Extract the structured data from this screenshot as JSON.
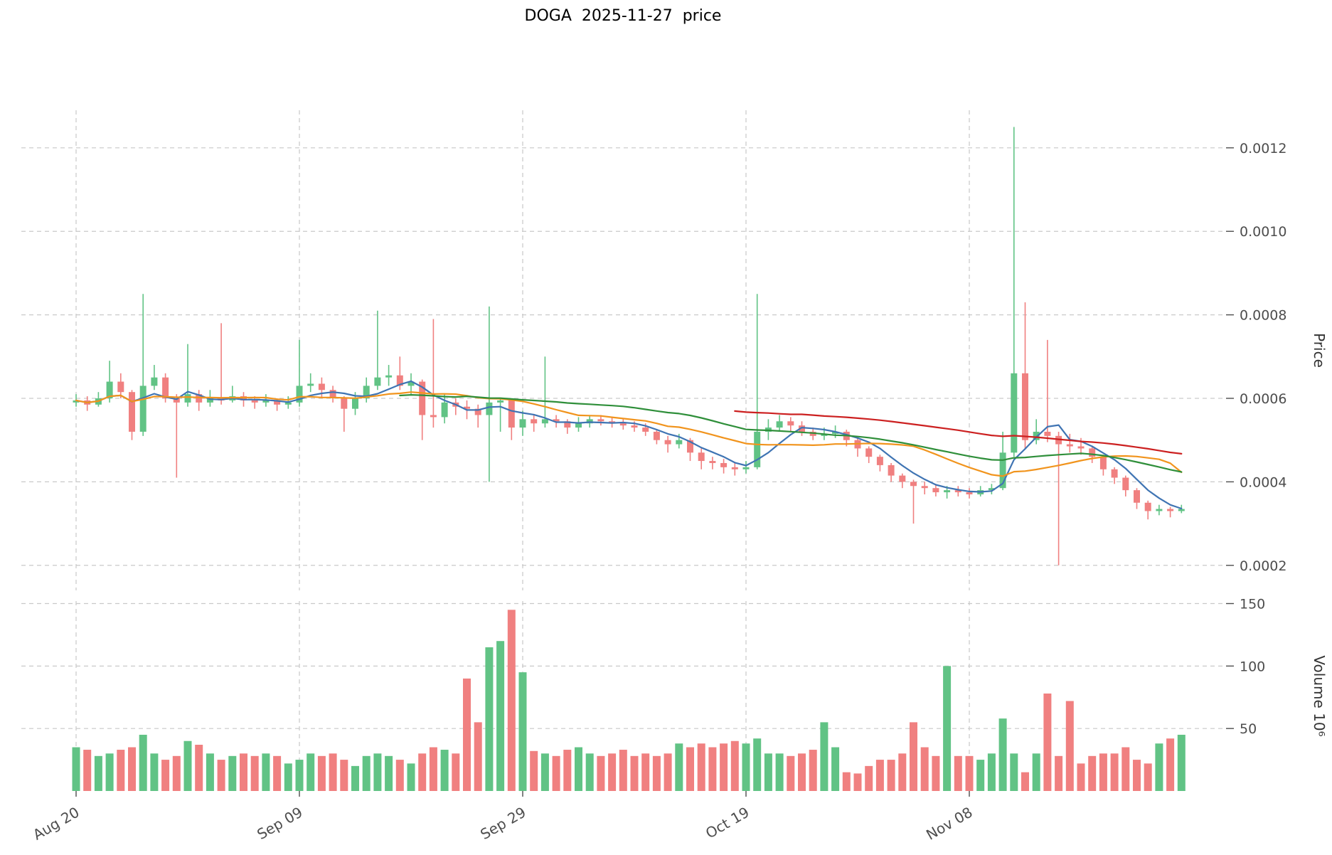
{
  "colors": {
    "up": "#61c385",
    "down": "#f08080",
    "ma_fast_blue": "#3f74b3",
    "ma_mid_orange": "#f1941d",
    "ma_slow_green": "#2f8f3a",
    "ma_long_red": "#cc2020",
    "grid": "#c9c9c9",
    "text": "#4d4d4d",
    "background": "#ffffff"
  },
  "chart_data": {
    "type": "candlestick",
    "title": "DOGA  2025-11-27  price",
    "volume_units": "10^6",
    "axes": {
      "price_label": "Price",
      "volume_label": "Volume  10⁶",
      "price_ticks": [
        0.0002,
        0.0004,
        0.0006,
        0.0008,
        0.001,
        0.0012
      ],
      "price_tick_labels": [
        "0.0002",
        "0.0004",
        "0.0006",
        "0.0008",
        "0.0010",
        "0.0012"
      ],
      "price_range": [
        0.00014,
        0.00129
      ],
      "volume_ticks": [
        50,
        100,
        150
      ],
      "volume_tick_labels": [
        "50",
        "100",
        "150"
      ],
      "volume_range": [
        0,
        152
      ],
      "x_ticks": [
        {
          "index": 0,
          "label": "Aug 20"
        },
        {
          "index": 20,
          "label": "Sep 09"
        },
        {
          "index": 40,
          "label": "Sep 29"
        },
        {
          "index": 60,
          "label": "Oct 19"
        },
        {
          "index": 80,
          "label": "Nov 08"
        }
      ]
    },
    "columns": [
      "date",
      "open",
      "high",
      "low",
      "close",
      "volume_1e6"
    ],
    "candles": [
      [
        "2025-08-20",
        0.00059,
        0.00061,
        0.00058,
        0.000595,
        35
      ],
      [
        "2025-08-21",
        0.000595,
        0.000605,
        0.00057,
        0.000585,
        33
      ],
      [
        "2025-08-22",
        0.000585,
        0.000615,
        0.00058,
        0.0006,
        28
      ],
      [
        "2025-08-23",
        0.0006,
        0.00069,
        0.00059,
        0.00064,
        30
      ],
      [
        "2025-08-24",
        0.00064,
        0.00066,
        0.0006,
        0.000615,
        33
      ],
      [
        "2025-08-25",
        0.000615,
        0.00062,
        0.0005,
        0.00052,
        35
      ],
      [
        "2025-08-26",
        0.00052,
        0.00085,
        0.00051,
        0.00063,
        45
      ],
      [
        "2025-08-27",
        0.00063,
        0.00068,
        0.00062,
        0.00065,
        30
      ],
      [
        "2025-08-28",
        0.00065,
        0.00066,
        0.00059,
        0.0006,
        25
      ],
      [
        "2025-08-29",
        0.0006,
        0.00061,
        0.00041,
        0.00059,
        28
      ],
      [
        "2025-08-30",
        0.00059,
        0.00073,
        0.00058,
        0.00061,
        40
      ],
      [
        "2025-08-31",
        0.00061,
        0.00062,
        0.00057,
        0.00059,
        37
      ],
      [
        "2025-09-01",
        0.00059,
        0.00062,
        0.00058,
        0.0006,
        30
      ],
      [
        "2025-09-02",
        0.0006,
        0.00078,
        0.000585,
        0.000595,
        25
      ],
      [
        "2025-09-03",
        0.000595,
        0.00063,
        0.00059,
        0.000605,
        28
      ],
      [
        "2025-09-04",
        0.000605,
        0.000615,
        0.00058,
        0.000595,
        30
      ],
      [
        "2025-09-05",
        0.000595,
        0.000605,
        0.000575,
        0.00059,
        28
      ],
      [
        "2025-09-06",
        0.00059,
        0.00061,
        0.00058,
        0.000595,
        30
      ],
      [
        "2025-09-07",
        0.000595,
        0.0006,
        0.00057,
        0.000585,
        28
      ],
      [
        "2025-09-08",
        0.000585,
        0.000605,
        0.000575,
        0.00059,
        22
      ],
      [
        "2025-09-09",
        0.00059,
        0.00074,
        0.00058,
        0.00063,
        25
      ],
      [
        "2025-09-10",
        0.00063,
        0.00066,
        0.000615,
        0.000635,
        30
      ],
      [
        "2025-09-11",
        0.000635,
        0.00065,
        0.0006,
        0.00062,
        28
      ],
      [
        "2025-09-12",
        0.00062,
        0.00063,
        0.00059,
        0.0006,
        30
      ],
      [
        "2025-09-13",
        0.0006,
        0.000605,
        0.00052,
        0.000575,
        25
      ],
      [
        "2025-09-14",
        0.000575,
        0.000615,
        0.00056,
        0.0006,
        20
      ],
      [
        "2025-09-15",
        0.0006,
        0.00065,
        0.00059,
        0.00063,
        28
      ],
      [
        "2025-09-16",
        0.00063,
        0.00081,
        0.00062,
        0.00065,
        30
      ],
      [
        "2025-09-17",
        0.00065,
        0.00068,
        0.00063,
        0.000655,
        28
      ],
      [
        "2025-09-18",
        0.000655,
        0.0007,
        0.00062,
        0.00063,
        25
      ],
      [
        "2025-09-19",
        0.00063,
        0.00066,
        0.00061,
        0.00064,
        22
      ],
      [
        "2025-09-20",
        0.00064,
        0.000645,
        0.0005,
        0.00056,
        30
      ],
      [
        "2025-09-21",
        0.00056,
        0.00079,
        0.00053,
        0.000555,
        35
      ],
      [
        "2025-09-22",
        0.000555,
        0.00061,
        0.00054,
        0.00059,
        33
      ],
      [
        "2025-09-23",
        0.00059,
        0.0006,
        0.00056,
        0.00058,
        30
      ],
      [
        "2025-09-24",
        0.00058,
        0.000595,
        0.00055,
        0.000575,
        90
      ],
      [
        "2025-09-25",
        0.000575,
        0.000585,
        0.00053,
        0.00056,
        55
      ],
      [
        "2025-09-26",
        0.00056,
        0.00082,
        0.0004,
        0.00059,
        115
      ],
      [
        "2025-09-27",
        0.00059,
        0.0006,
        0.00052,
        0.000595,
        120
      ],
      [
        "2025-09-28",
        0.000595,
        0.0006,
        0.0005,
        0.00053,
        145
      ],
      [
        "2025-09-29",
        0.00053,
        0.00057,
        0.00051,
        0.00055,
        95
      ],
      [
        "2025-09-30",
        0.00055,
        0.00056,
        0.00052,
        0.00054,
        32
      ],
      [
        "2025-10-01",
        0.00054,
        0.0007,
        0.00053,
        0.00055,
        30
      ],
      [
        "2025-10-02",
        0.00055,
        0.00056,
        0.00053,
        0.000545,
        28
      ],
      [
        "2025-10-03",
        0.000545,
        0.00055,
        0.000515,
        0.00053,
        33
      ],
      [
        "2025-10-04",
        0.00053,
        0.000555,
        0.00052,
        0.00054,
        35
      ],
      [
        "2025-10-05",
        0.00054,
        0.00056,
        0.00053,
        0.00055,
        30
      ],
      [
        "2025-10-06",
        0.00055,
        0.00056,
        0.000535,
        0.000545,
        28
      ],
      [
        "2025-10-07",
        0.000545,
        0.000555,
        0.00053,
        0.00054,
        30
      ],
      [
        "2025-10-08",
        0.00054,
        0.00055,
        0.000525,
        0.000535,
        33
      ],
      [
        "2025-10-09",
        0.000535,
        0.000545,
        0.00052,
        0.00053,
        28
      ],
      [
        "2025-10-10",
        0.00053,
        0.00054,
        0.00051,
        0.00052,
        30
      ],
      [
        "2025-10-11",
        0.00052,
        0.000525,
        0.00049,
        0.0005,
        28
      ],
      [
        "2025-10-12",
        0.0005,
        0.00051,
        0.00047,
        0.00049,
        30
      ],
      [
        "2025-10-13",
        0.00049,
        0.000515,
        0.00048,
        0.0005,
        38
      ],
      [
        "2025-10-14",
        0.0005,
        0.000505,
        0.00045,
        0.00047,
        35
      ],
      [
        "2025-10-15",
        0.00047,
        0.00048,
        0.00043,
        0.00045,
        38
      ],
      [
        "2025-10-16",
        0.00045,
        0.00046,
        0.00043,
        0.000445,
        35
      ],
      [
        "2025-10-17",
        0.000445,
        0.000455,
        0.00042,
        0.000435,
        38
      ],
      [
        "2025-10-18",
        0.000435,
        0.000445,
        0.000415,
        0.00043,
        40
      ],
      [
        "2025-10-19",
        0.00043,
        0.00045,
        0.00042,
        0.000435,
        38
      ],
      [
        "2025-10-20",
        0.000435,
        0.00085,
        0.00043,
        0.00052,
        42
      ],
      [
        "2025-10-21",
        0.00052,
        0.00055,
        0.0005,
        0.00053,
        30
      ],
      [
        "2025-10-22",
        0.00053,
        0.00056,
        0.00052,
        0.000545,
        30
      ],
      [
        "2025-10-23",
        0.000545,
        0.000555,
        0.00052,
        0.000535,
        28
      ],
      [
        "2025-10-24",
        0.000535,
        0.000545,
        0.00051,
        0.00052,
        30
      ],
      [
        "2025-10-25",
        0.00052,
        0.00053,
        0.0005,
        0.00051,
        33
      ],
      [
        "2025-10-26",
        0.00051,
        0.00053,
        0.0005,
        0.000515,
        55
      ],
      [
        "2025-10-27",
        0.000515,
        0.000535,
        0.000505,
        0.00052,
        35
      ],
      [
        "2025-10-28",
        0.00052,
        0.000525,
        0.000485,
        0.0005,
        15
      ],
      [
        "2025-10-29",
        0.0005,
        0.000505,
        0.00046,
        0.00048,
        14
      ],
      [
        "2025-10-30",
        0.00048,
        0.000485,
        0.000445,
        0.00046,
        20
      ],
      [
        "2025-10-31",
        0.00046,
        0.000465,
        0.000425,
        0.00044,
        25
      ],
      [
        "2025-11-01",
        0.00044,
        0.000445,
        0.0004,
        0.000415,
        25
      ],
      [
        "2025-11-02",
        0.000415,
        0.00042,
        0.000385,
        0.0004,
        30
      ],
      [
        "2025-11-03",
        0.0004,
        0.000405,
        0.0003,
        0.00039,
        55
      ],
      [
        "2025-11-04",
        0.00039,
        0.0004,
        0.00037,
        0.000385,
        35
      ],
      [
        "2025-11-05",
        0.000385,
        0.000395,
        0.000365,
        0.000375,
        28
      ],
      [
        "2025-11-06",
        0.000375,
        0.00039,
        0.00036,
        0.00038,
        100
      ],
      [
        "2025-11-07",
        0.00038,
        0.00039,
        0.000365,
        0.000375,
        28
      ],
      [
        "2025-11-08",
        0.000375,
        0.000385,
        0.00036,
        0.00037,
        28
      ],
      [
        "2025-11-09",
        0.00037,
        0.00039,
        0.000365,
        0.00038,
        25
      ],
      [
        "2025-11-10",
        0.00038,
        0.000395,
        0.00037,
        0.000385,
        30
      ],
      [
        "2025-11-11",
        0.000385,
        0.00052,
        0.00038,
        0.00047,
        58
      ],
      [
        "2025-11-12",
        0.00047,
        0.00125,
        0.00046,
        0.00066,
        30
      ],
      [
        "2025-11-13",
        0.00066,
        0.00083,
        0.00048,
        0.0005,
        15
      ],
      [
        "2025-11-14",
        0.0005,
        0.00055,
        0.00049,
        0.00052,
        30
      ],
      [
        "2025-11-15",
        0.00052,
        0.00074,
        0.000495,
        0.00051,
        78
      ],
      [
        "2025-11-16",
        0.00051,
        0.00052,
        0.0002,
        0.00049,
        28
      ],
      [
        "2025-11-17",
        0.00049,
        0.000515,
        0.00047,
        0.000485,
        72
      ],
      [
        "2025-11-18",
        0.000485,
        0.000505,
        0.000465,
        0.00048,
        22
      ],
      [
        "2025-11-19",
        0.00048,
        0.000485,
        0.000445,
        0.00046,
        28
      ],
      [
        "2025-11-20",
        0.00046,
        0.000465,
        0.000415,
        0.00043,
        30
      ],
      [
        "2025-11-21",
        0.00043,
        0.000435,
        0.000395,
        0.00041,
        30
      ],
      [
        "2025-11-22",
        0.00041,
        0.000415,
        0.000365,
        0.00038,
        35
      ],
      [
        "2025-11-23",
        0.00038,
        0.000385,
        0.000335,
        0.00035,
        25
      ],
      [
        "2025-11-24",
        0.00035,
        0.000355,
        0.00031,
        0.00033,
        22
      ],
      [
        "2025-11-25",
        0.00033,
        0.000345,
        0.00032,
        0.000335,
        38
      ],
      [
        "2025-11-26",
        0.000335,
        0.00034,
        0.000315,
        0.00033,
        42
      ],
      [
        "2025-11-27",
        0.00033,
        0.000345,
        0.000325,
        0.000335,
        45
      ]
    ],
    "moving_averages": [
      {
        "name": "MA5",
        "window": 5,
        "min_index": 0,
        "color": "#3f74b3"
      },
      {
        "name": "MA15",
        "window": 15,
        "min_index": 0,
        "color": "#f1941d"
      },
      {
        "name": "MA30",
        "window": 30,
        "min_index": 29,
        "color": "#2f8f3a"
      },
      {
        "name": "MA60",
        "window": 60,
        "min_index": 59,
        "color": "#cc2020"
      }
    ]
  }
}
